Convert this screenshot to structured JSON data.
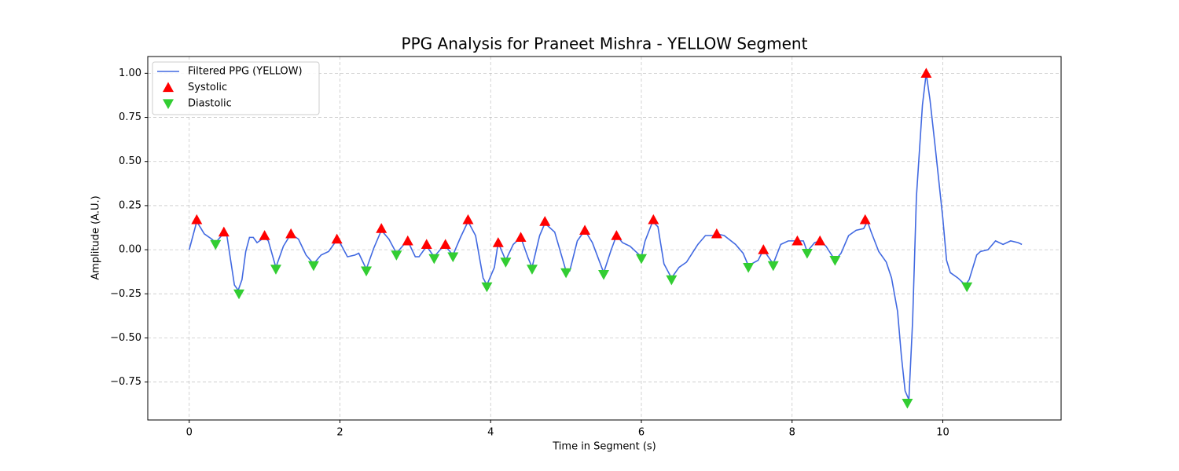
{
  "chart_data": {
    "type": "line",
    "title": "PPG Analysis for Praneet Mishra - YELLOW Segment",
    "x_label": "Time in Segment (s)",
    "y_label": "Amplitude (A.U.)",
    "xlim": [
      -0.55,
      11.57
    ],
    "ylim": [
      -0.965,
      1.095
    ],
    "xticks": [
      0,
      2,
      4,
      6,
      8,
      10
    ],
    "yticks": [
      {
        "value": -0.75,
        "label": "−0.75"
      },
      {
        "value": -0.5,
        "label": "−0.50"
      },
      {
        "value": -0.25,
        "label": "−0.25"
      },
      {
        "value": 0,
        "label": "0.00"
      },
      {
        "value": 0.25,
        "label": "0.25"
      },
      {
        "value": 0.5,
        "label": "0.50"
      },
      {
        "value": 0.75,
        "label": "0.75"
      },
      {
        "value": 1,
        "label": "1.00"
      }
    ],
    "grid": true,
    "legend": "upper left",
    "series": [
      {
        "name": "Filtered PPG (YELLOW)",
        "color": "#4169e1",
        "marker": "line",
        "x": [
          0,
          0.1,
          0.2,
          0.3,
          0.35,
          0.45,
          0.5,
          0.6,
          0.65,
          0.7,
          0.75,
          0.8,
          0.85,
          0.9,
          1.0,
          1.05,
          1.15,
          1.25,
          1.35,
          1.45,
          1.55,
          1.65,
          1.75,
          1.85,
          1.95,
          2.0,
          2.1,
          2.2,
          2.25,
          2.35,
          2.45,
          2.55,
          2.65,
          2.75,
          2.85,
          2.9,
          3.0,
          3.05,
          3.15,
          3.25,
          3.35,
          3.4,
          3.5,
          3.6,
          3.7,
          3.8,
          3.9,
          3.95,
          4.05,
          4.1,
          4.2,
          4.3,
          4.4,
          4.5,
          4.55,
          4.65,
          4.72,
          4.85,
          5.0,
          5.05,
          5.15,
          5.25,
          5.35,
          5.5,
          5.6,
          5.67,
          5.75,
          5.85,
          6.0,
          6.05,
          6.15,
          6.22,
          6.3,
          6.4,
          6.5,
          6.6,
          6.75,
          6.85,
          6.95,
          7.0,
          7.1,
          7.25,
          7.35,
          7.42,
          7.55,
          7.62,
          7.7,
          7.75,
          7.85,
          7.95,
          8.05,
          8.15,
          8.2,
          8.3,
          8.37,
          8.45,
          8.57,
          8.65,
          8.75,
          8.85,
          8.95,
          9.0,
          9.05,
          9.15,
          9.25,
          9.32,
          9.4,
          9.45,
          9.5,
          9.55,
          9.6,
          9.65,
          9.73,
          9.78,
          9.83,
          9.9,
          10.0,
          10.05,
          10.1,
          10.2,
          10.3,
          10.35,
          10.45,
          10.5,
          10.6,
          10.7,
          10.8,
          10.9,
          11.0,
          11.05
        ],
        "values": [
          0,
          0.16,
          0.09,
          0.06,
          0.04,
          0.09,
          0.08,
          -0.2,
          -0.23,
          -0.17,
          -0.01,
          0.07,
          0.07,
          0.04,
          0.07,
          0.05,
          -0.1,
          0.02,
          0.09,
          0.06,
          -0.03,
          -0.08,
          -0.03,
          -0.01,
          0.05,
          0.04,
          -0.04,
          -0.03,
          -0.02,
          -0.11,
          0.01,
          0.11,
          0.06,
          -0.02,
          0.03,
          0.05,
          -0.04,
          -0.04,
          0.02,
          -0.04,
          0.01,
          0.02,
          -0.03,
          0.07,
          0.16,
          0.08,
          -0.16,
          -0.2,
          -0.1,
          0.04,
          -0.06,
          0.03,
          0.07,
          -0.05,
          -0.1,
          0.08,
          0.15,
          0.1,
          -0.12,
          -0.12,
          0.05,
          0.11,
          0.04,
          -0.13,
          0,
          0.08,
          0.04,
          0.02,
          -0.04,
          0.05,
          0.16,
          0.13,
          -0.08,
          -0.16,
          -0.1,
          -0.07,
          0.03,
          0.08,
          0.08,
          0.09,
          0.08,
          0.03,
          -0.02,
          -0.09,
          -0.06,
          0,
          -0.05,
          -0.08,
          0.03,
          0.05,
          0.05,
          0.05,
          -0.01,
          0.04,
          0.05,
          0.02,
          -0.06,
          -0.02,
          0.08,
          0.11,
          0.12,
          0.16,
          0.1,
          -0.01,
          -0.07,
          -0.16,
          -0.35,
          -0.6,
          -0.8,
          -0.85,
          -0.4,
          0.3,
          0.82,
          1,
          0.85,
          0.58,
          0.18,
          -0.06,
          -0.13,
          -0.16,
          -0.2,
          -0.17,
          -0.03,
          -0.01,
          0,
          0.05,
          0.03,
          0.05,
          0.04,
          0.03
        ]
      },
      {
        "name": "Systolic",
        "color": "#ff0000",
        "marker": "triangle-up",
        "x": [
          0.1,
          0.46,
          1.0,
          1.35,
          1.96,
          2.55,
          2.9,
          3.15,
          3.4,
          3.7,
          4.1,
          4.4,
          4.72,
          5.25,
          5.67,
          6.16,
          7.0,
          7.62,
          8.07,
          8.37,
          8.97,
          9.78
        ],
        "values": [
          0.17,
          0.1,
          0.08,
          0.09,
          0.06,
          0.12,
          0.05,
          0.03,
          0.03,
          0.17,
          0.04,
          0.07,
          0.16,
          0.11,
          0.08,
          0.17,
          0.09,
          0,
          0.05,
          0.05,
          0.17,
          1.0
        ]
      },
      {
        "name": "Diastolic",
        "color": "#32cd32",
        "marker": "triangle-down",
        "x": [
          0.35,
          0.66,
          1.15,
          1.65,
          2.35,
          2.75,
          3.25,
          3.5,
          3.95,
          4.2,
          4.55,
          5.0,
          5.5,
          6.0,
          6.4,
          7.42,
          7.75,
          8.2,
          8.57,
          9.53,
          10.32
        ],
        "values": [
          0.03,
          -0.25,
          -0.11,
          -0.09,
          -0.12,
          -0.03,
          -0.05,
          -0.04,
          -0.21,
          -0.07,
          -0.11,
          -0.13,
          -0.14,
          -0.05,
          -0.17,
          -0.1,
          -0.09,
          -0.02,
          -0.06,
          -0.87,
          -0.21
        ]
      }
    ]
  }
}
